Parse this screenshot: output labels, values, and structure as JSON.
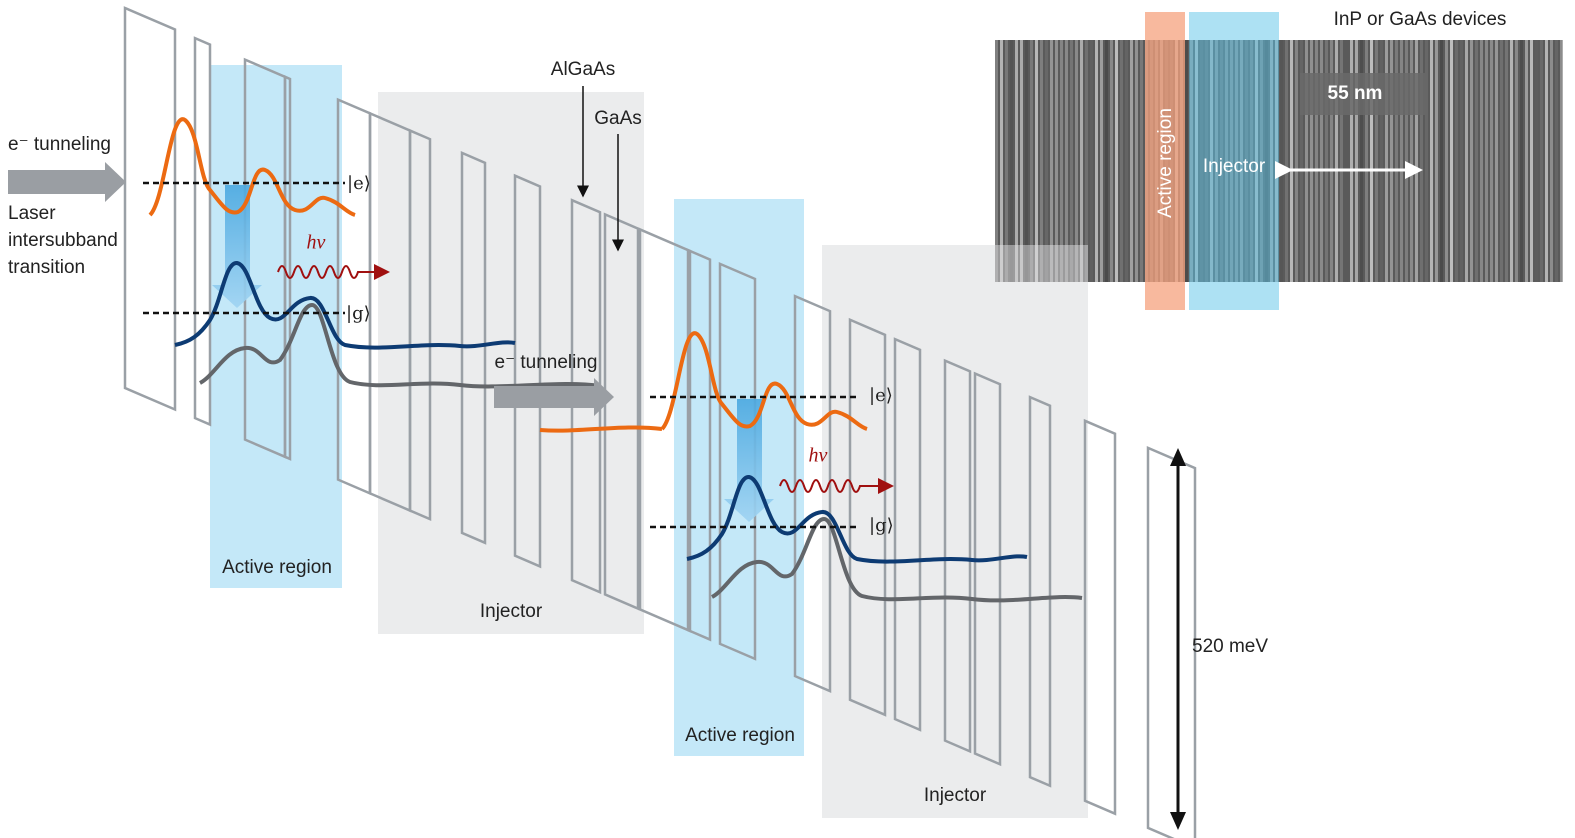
{
  "left_labels": {
    "tunneling": "e⁻ tunneling",
    "transition": [
      "Laser",
      "intersubband",
      "transition"
    ]
  },
  "stages": [
    {
      "active_label": "Active region",
      "injector_label": "Injector",
      "excited": "|e⟩",
      "ground": "|g⟩",
      "photon": "hν"
    },
    {
      "active_label": "Active region",
      "injector_label": "Injector",
      "excited": "|e⟩",
      "ground": "|g⟩",
      "photon": "hν"
    }
  ],
  "tunneling_middle": "e⁻ tunneling",
  "materials": {
    "barrier": "AlGaAs",
    "well": "GaAs"
  },
  "energy_span": "520 meV",
  "micrograph": {
    "title": "InP or GaAs devices",
    "active_label": "Active region",
    "injector_label": "Injector",
    "scale": "55 nm"
  }
}
